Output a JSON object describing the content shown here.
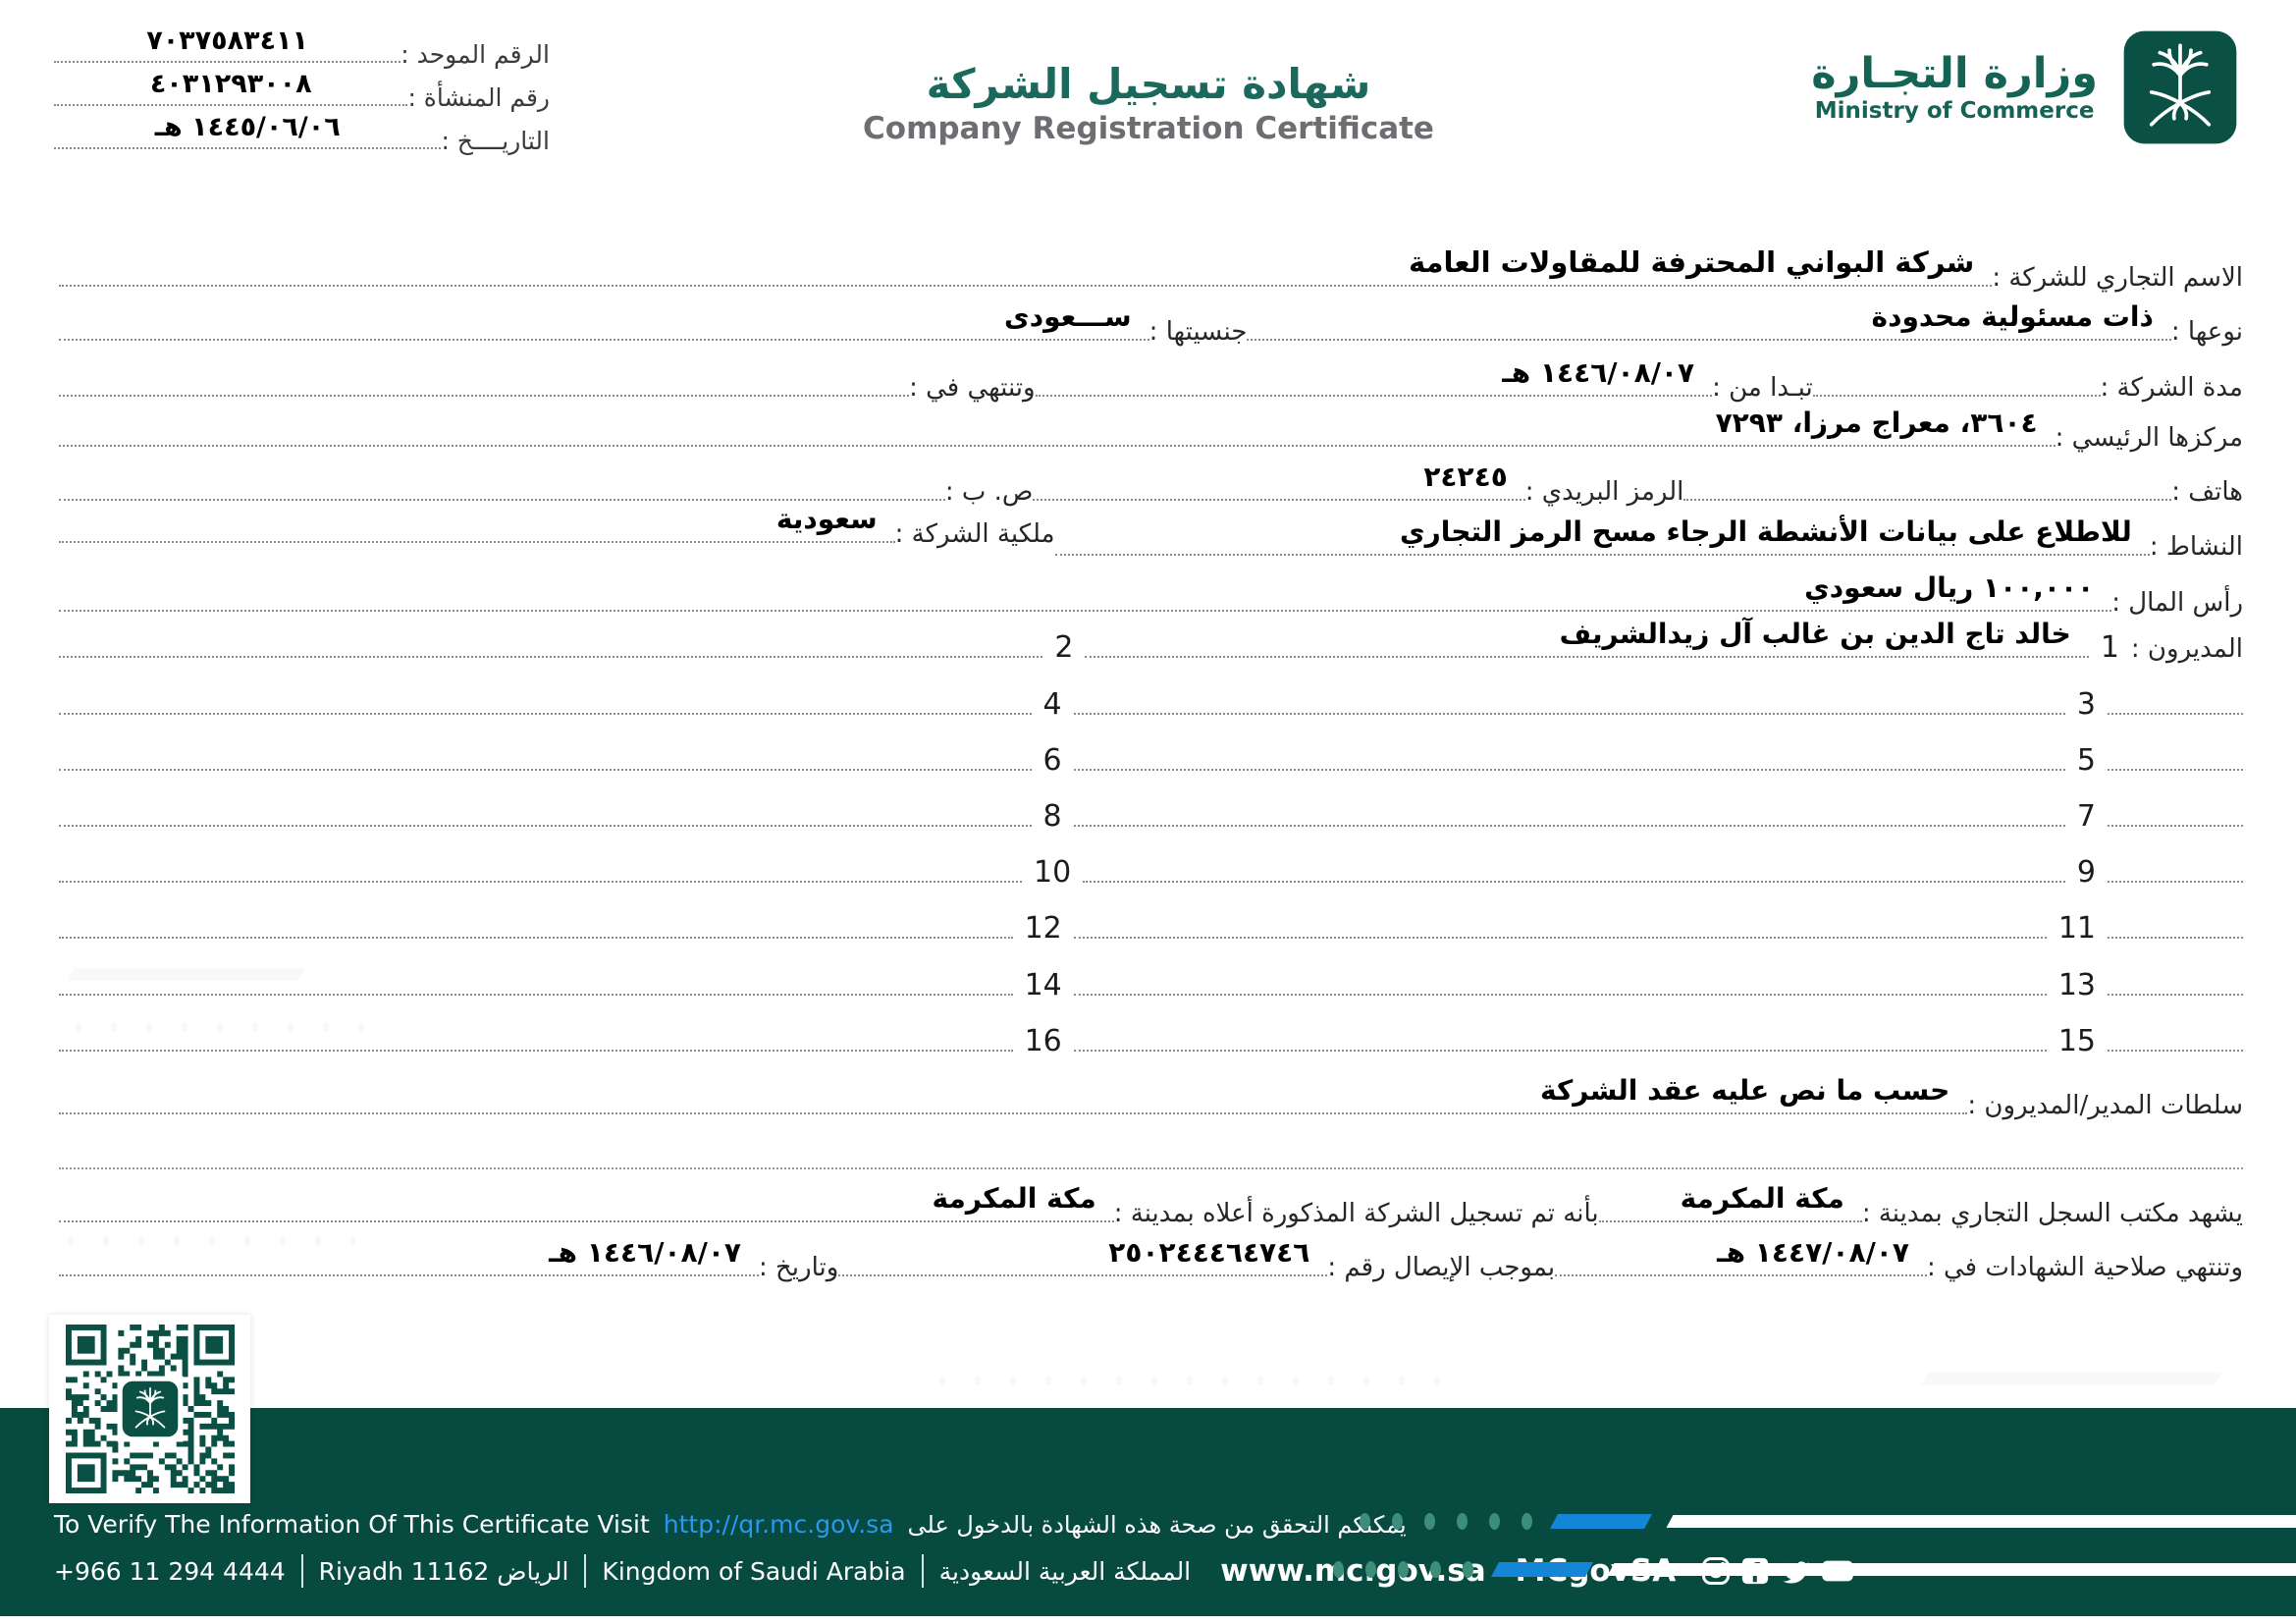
{
  "header": {
    "ids": {
      "unified": {
        "label": "الرقم الموحد :",
        "value": "٧٠٣٧٥٨٣٤١١"
      },
      "entity": {
        "label": "رقم المنشأة :",
        "value": "٤٠٣١٢٩٣٠٠٨"
      },
      "date": {
        "label": "التاريــــخ :",
        "value": "١٤٤٥/٠٦/٠٦ هـ"
      }
    },
    "title_ar": "شهادة تسجيل الشركة",
    "title_en": "Company Registration Certificate",
    "ministry": {
      "name_ar": "وزارة التجـارة",
      "name_en": "Ministry of Commerce",
      "emblem_icon": "saudi-palm-and-swords-emblem"
    }
  },
  "fields": {
    "trade_name": {
      "label": "الاسم التجاري للشركة :",
      "value": "شركة البواني المحترفة للمقاولات العامة"
    },
    "type": {
      "label": "نوعها :",
      "value": "ذات مسئولية محدودة"
    },
    "nationality": {
      "label": "جنسيتها :",
      "value": "ســـعودى"
    },
    "duration": {
      "label": "مدة الشركة :",
      "value": ""
    },
    "start_date": {
      "label": "تبـدا من :",
      "value": "١٤٤٦/٠٨/٠٧ هـ"
    },
    "end_date": {
      "label": "وتنتهي في :",
      "value": ""
    },
    "head_office": {
      "label": "مركزها الرئيسي :",
      "value": "٣٦٠٤، معراج مرزا، ٧٢٩٣"
    },
    "phone": {
      "label": "هاتف :",
      "value": ""
    },
    "postal_code": {
      "label": "الرمز البريدي :",
      "value": "٢٤٢٤٥"
    },
    "po_box": {
      "label": "ص. ب :",
      "value": ""
    },
    "activity": {
      "label": "النشاط :",
      "value": "للاطلاع على بيانات الأنشطة الرجاء مسح الرمز التجاري"
    },
    "ownership": {
      "label": "ملكية الشركة :",
      "value": "سعودية"
    },
    "capital": {
      "label": "رأس المال :",
      "value": "١٠٠,٠٠٠ ريال سعودي"
    }
  },
  "managers": {
    "label": "المديرون :",
    "manager1": "خالد تاج الدين بن غالب آل زيدالشريف",
    "numbers": [
      "1",
      "2",
      "3",
      "4",
      "5",
      "6",
      "7",
      "8",
      "9",
      "10",
      "11",
      "12",
      "13",
      "14",
      "15",
      "16"
    ]
  },
  "powers": {
    "label": "سلطات المدير/المديرون :",
    "value": "حسب ما نص عليه عقد الشركة"
  },
  "attestation": {
    "office_city": {
      "label": "يشهد مكتب السجل التجاري بمدينة :",
      "value": "مكة المكرمة"
    },
    "registered_city": {
      "label": "بأنه تم تسجيل الشركة المذكورة أعلاه بمدينة :",
      "value": "مكة المكرمة"
    },
    "expiry": {
      "label": "وتنتهي صلاحية الشهادات في :",
      "value": "١٤٤٧/٠٨/٠٧ هـ"
    },
    "receipt_no": {
      "label": "بموجب الإيصال رقم :",
      "value": "٢٥٠٢٤٤٤٦٤٧٤٦"
    },
    "receipt_date": {
      "label": "وتاريخ :",
      "value": "١٤٤٦/٠٨/٠٧ هـ"
    }
  },
  "footer": {
    "verify_en": "To Verify The Information Of This Certificate Visit",
    "verify_link": "http://qr.mc.gov.sa",
    "verify_ar": "يمكنكم التحقق من صحة هذه الشهادة بالدخول على",
    "phone": "+966 11 294 4444",
    "city": "Riyadh 11162 الرياض",
    "country_en": "Kingdom of Saudi Arabia",
    "country_ar": "المملكة العربية السعودية",
    "website": "www.mc.gov.sa",
    "social_handle": "MCgovSA",
    "social_icons": [
      "instagram-icon",
      "facebook-icon",
      "twitter-icon",
      "youtube-icon"
    ],
    "qr_icon": "qr-code"
  },
  "colors": {
    "brand_teal": "#156355",
    "emblem_green": "#0b5044",
    "footer_green": "#074a3f",
    "title_teal": "#1a695c",
    "subtitle_gray": "#6d6e71",
    "link_blue": "#2b97ee",
    "accent_blue": "#1486d8",
    "deco_teal": "#3d8d7b"
  }
}
